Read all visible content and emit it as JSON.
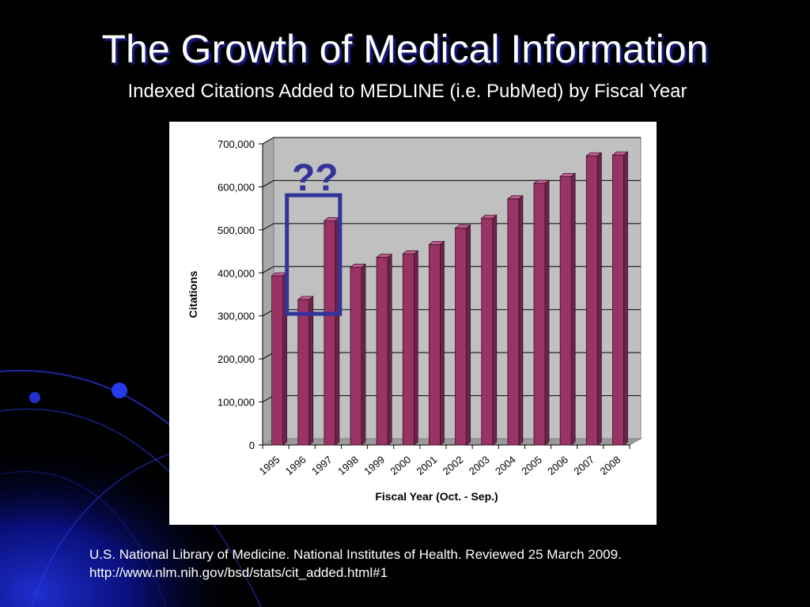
{
  "slide": {
    "title": "The Growth of Medical Information",
    "subtitle": "Indexed Citations Added to MEDLINE (i.e. PubMed) by Fiscal Year",
    "source_line1": "U.S. National Library of Medicine. National Institutes of Health. Reviewed 25 March 2009.",
    "source_line2": "http://www.nlm.nih.gov/bsd/stats/cit_added.html#1"
  },
  "chart_data": {
    "type": "bar",
    "title": "",
    "xlabel": "Fiscal Year (Oct. - Sep.)",
    "ylabel": "Citations",
    "categories": [
      "1995",
      "1996",
      "1997",
      "1998",
      "1999",
      "2000",
      "2001",
      "2002",
      "2003",
      "2004",
      "2005",
      "2006",
      "2007",
      "2008"
    ],
    "values": [
      393000,
      338000,
      521000,
      413000,
      436000,
      444000,
      466000,
      504000,
      527000,
      572000,
      608000,
      624000,
      672000,
      674000
    ],
    "ylim": [
      0,
      700000
    ],
    "yticks": [
      0,
      100000,
      200000,
      300000,
      400000,
      500000,
      600000,
      700000
    ],
    "ytick_labels": [
      "0",
      "100,000",
      "200,000",
      "300,000",
      "400,000",
      "500,000",
      "600,000",
      "700,000"
    ],
    "grid": true,
    "legend": "none",
    "bar_color": "#993366",
    "annotation": {
      "text": "??",
      "highlights": [
        "1996",
        "1997"
      ],
      "color": "#333399"
    }
  }
}
